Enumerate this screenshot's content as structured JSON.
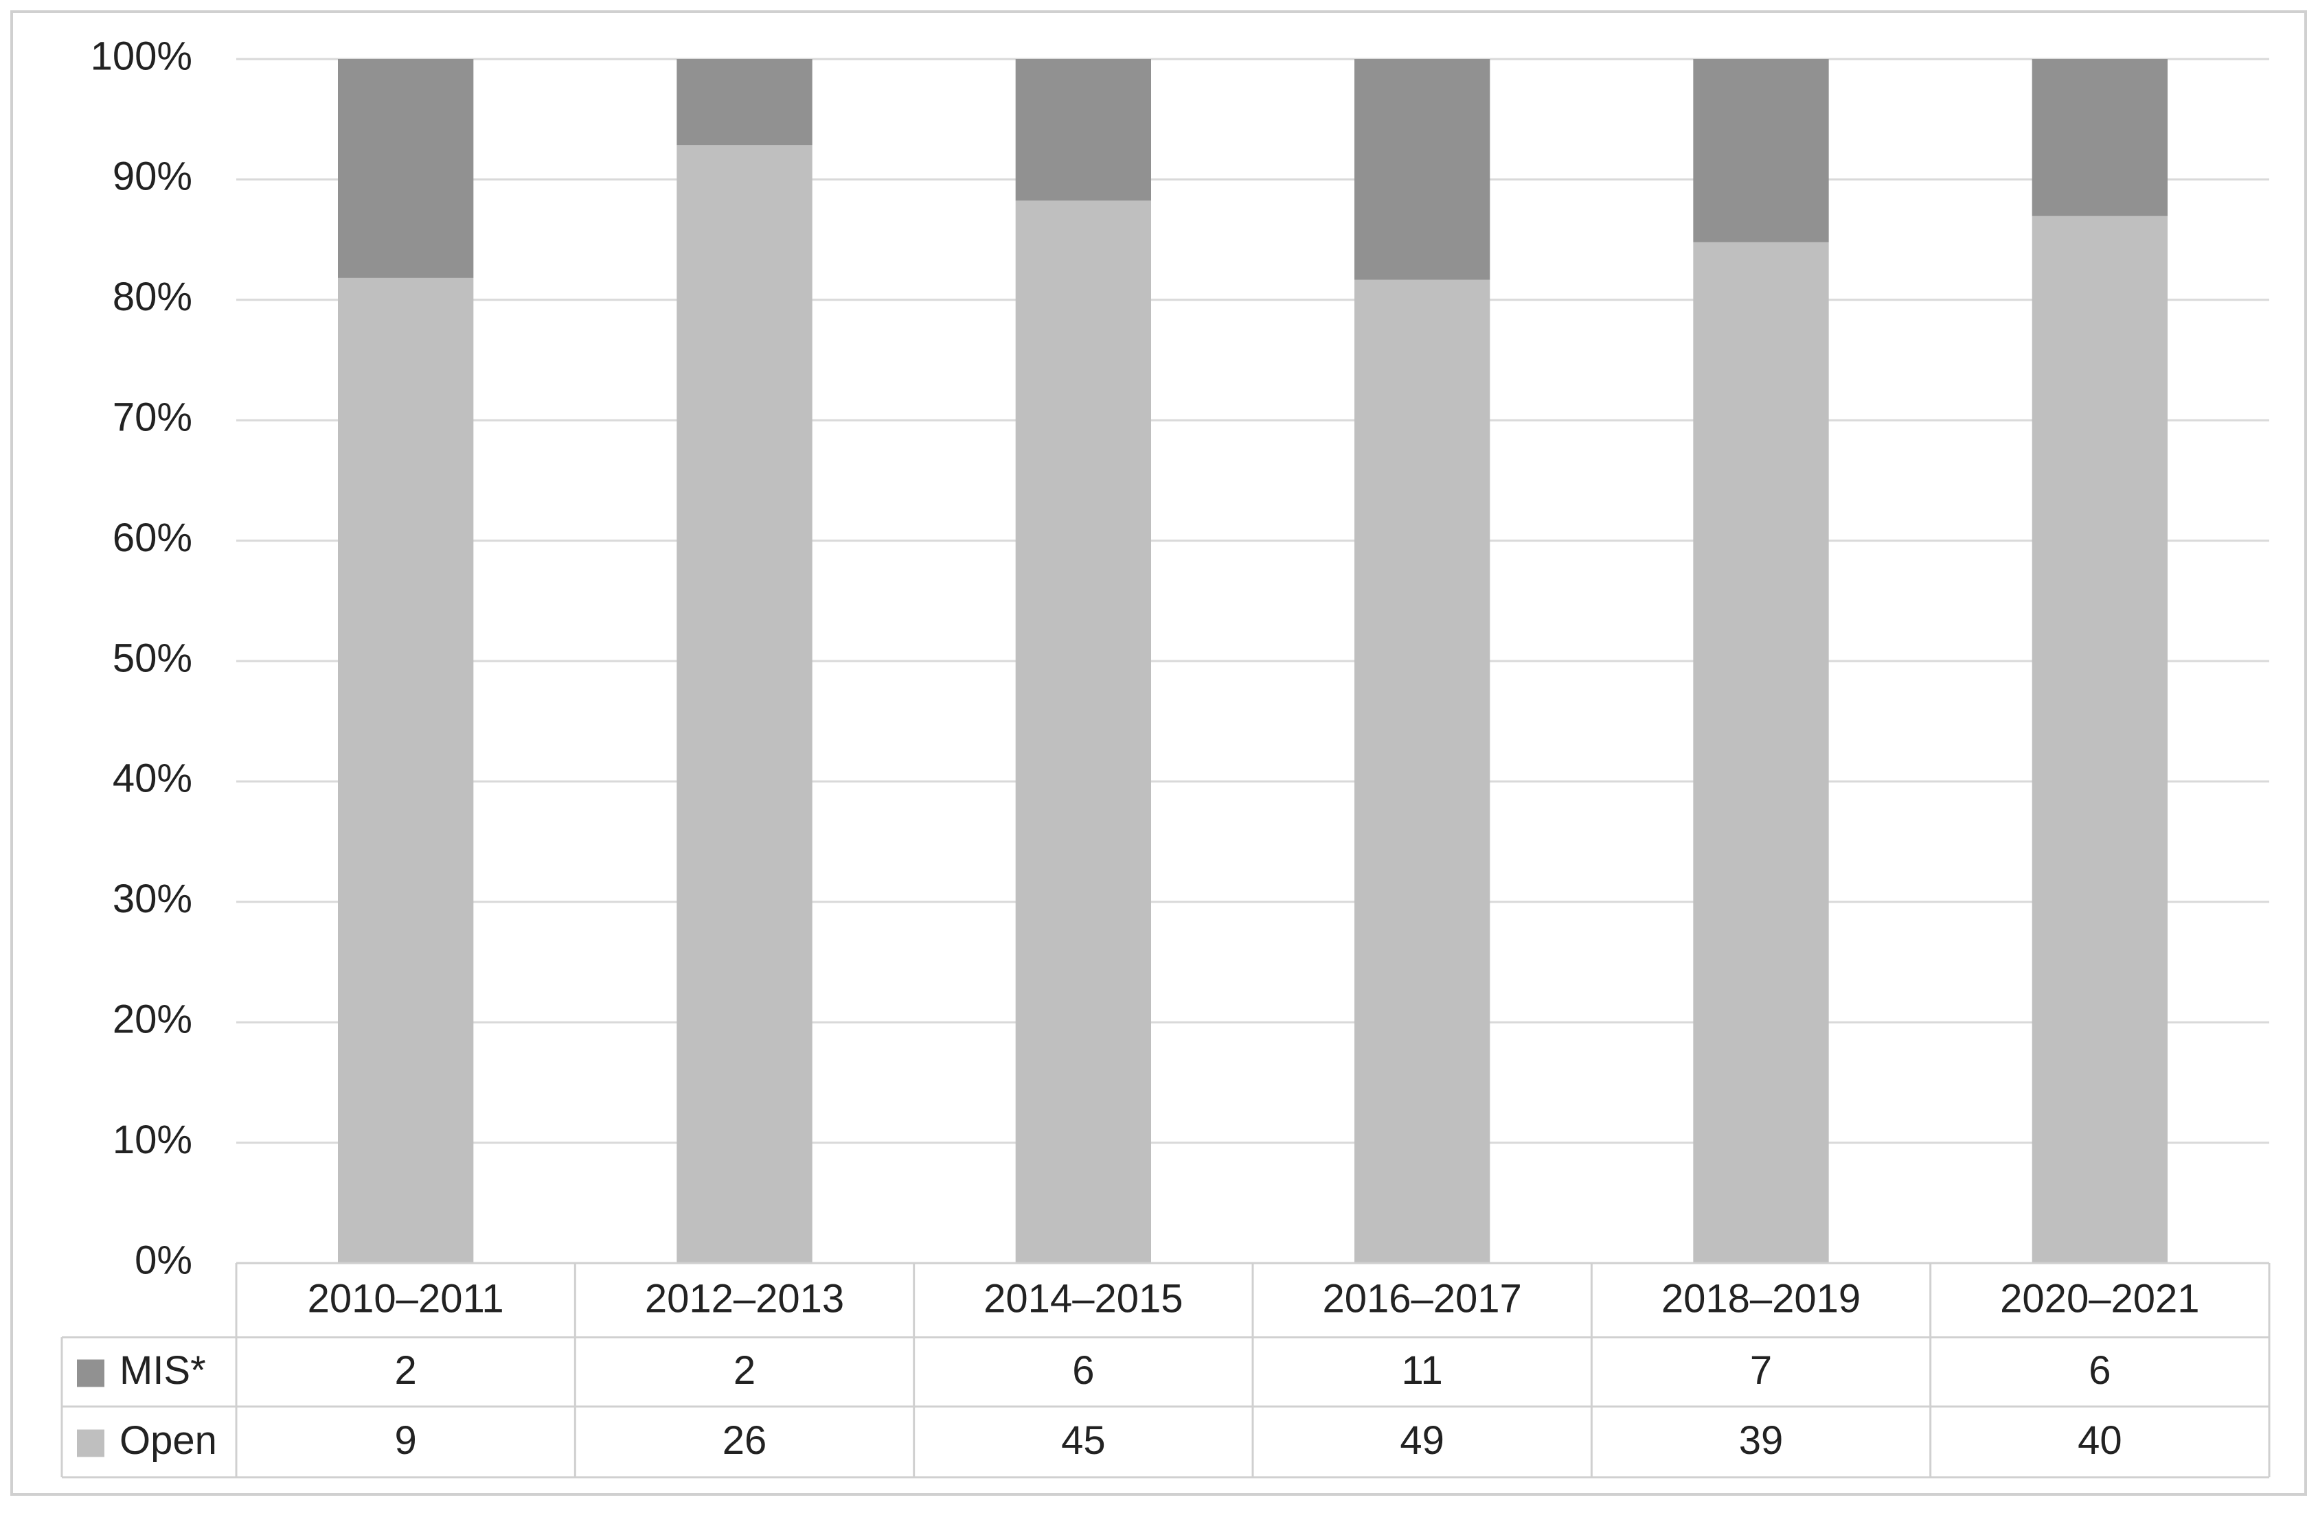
{
  "chart_data": {
    "type": "bar",
    "stacked_percent": true,
    "categories": [
      "2010–2011",
      "2012–2013",
      "2014–2015",
      "2016–2017",
      "2018–2019",
      "2020–2021"
    ],
    "series": [
      {
        "name": "MIS*",
        "color": "#919191",
        "values": [
          2,
          2,
          6,
          11,
          7,
          6
        ]
      },
      {
        "name": "Open",
        "color": "#bfbfbf",
        "values": [
          9,
          26,
          45,
          49,
          39,
          40
        ]
      }
    ],
    "ylim": [
      0,
      100
    ],
    "yticks": [
      {
        "value": 0,
        "label": "0%"
      },
      {
        "value": 10,
        "label": "10%"
      },
      {
        "value": 20,
        "label": "20%"
      },
      {
        "value": 30,
        "label": "30%"
      },
      {
        "value": 40,
        "label": "40%"
      },
      {
        "value": 50,
        "label": "50%"
      },
      {
        "value": 60,
        "label": "60%"
      },
      {
        "value": 70,
        "label": "70%"
      },
      {
        "value": 80,
        "label": "80%"
      },
      {
        "value": 90,
        "label": "90%"
      },
      {
        "value": 100,
        "label": "100%"
      }
    ],
    "grid": true,
    "data_table": true
  }
}
